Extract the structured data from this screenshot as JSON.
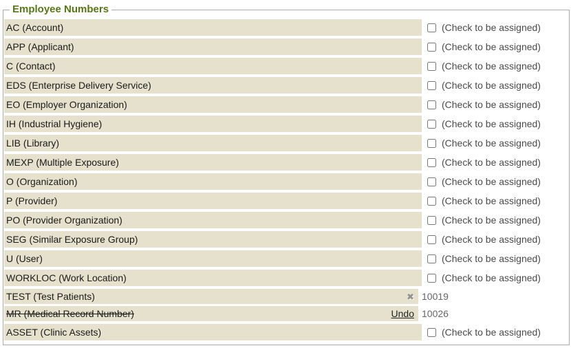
{
  "panel": {
    "title": "Employee Numbers",
    "check_label": "(Check to be assigned)",
    "icons": {
      "remove_x": "✖"
    },
    "colors": {
      "title": "#567714",
      "row_bg": "#e6e1cd",
      "border": "#a8a8a8",
      "label_text": "#1a1a1a",
      "check_text": "#4a4a4a",
      "value_text": "#666666",
      "undo_link": "#222222",
      "x_icon": "#919191"
    },
    "rows": [
      {
        "label": "AC (Account)",
        "type": "checkbox"
      },
      {
        "label": "APP (Applicant)",
        "type": "checkbox"
      },
      {
        "label": "C (Contact)",
        "type": "checkbox"
      },
      {
        "label": "EDS (Enterprise Delivery Service)",
        "type": "checkbox"
      },
      {
        "label": "EO (Employer Organization)",
        "type": "checkbox"
      },
      {
        "label": "IH (Industrial Hygiene)",
        "type": "checkbox"
      },
      {
        "label": "LIB (Library)",
        "type": "checkbox"
      },
      {
        "label": "MEXP (Multiple Exposure)",
        "type": "checkbox"
      },
      {
        "label": "O (Organization)",
        "type": "checkbox"
      },
      {
        "label": "P (Provider)",
        "type": "checkbox"
      },
      {
        "label": "PO (Provider Organization)",
        "type": "checkbox"
      },
      {
        "label": "SEG (Similar Exposure Group)",
        "type": "checkbox"
      },
      {
        "label": "U (User)",
        "type": "checkbox"
      },
      {
        "label": "WORKLOC (Work Location)",
        "type": "checkbox"
      },
      {
        "label": "TEST (Test Patients)",
        "type": "assigned",
        "value": "10019",
        "icon": "remove-x-icon"
      },
      {
        "label": "MR (Medical Record Number)",
        "type": "undone",
        "value": "10026",
        "undo_label": "Undo",
        "strikethrough": true
      },
      {
        "label": "ASSET (Clinic Assets)",
        "type": "checkbox"
      }
    ]
  }
}
